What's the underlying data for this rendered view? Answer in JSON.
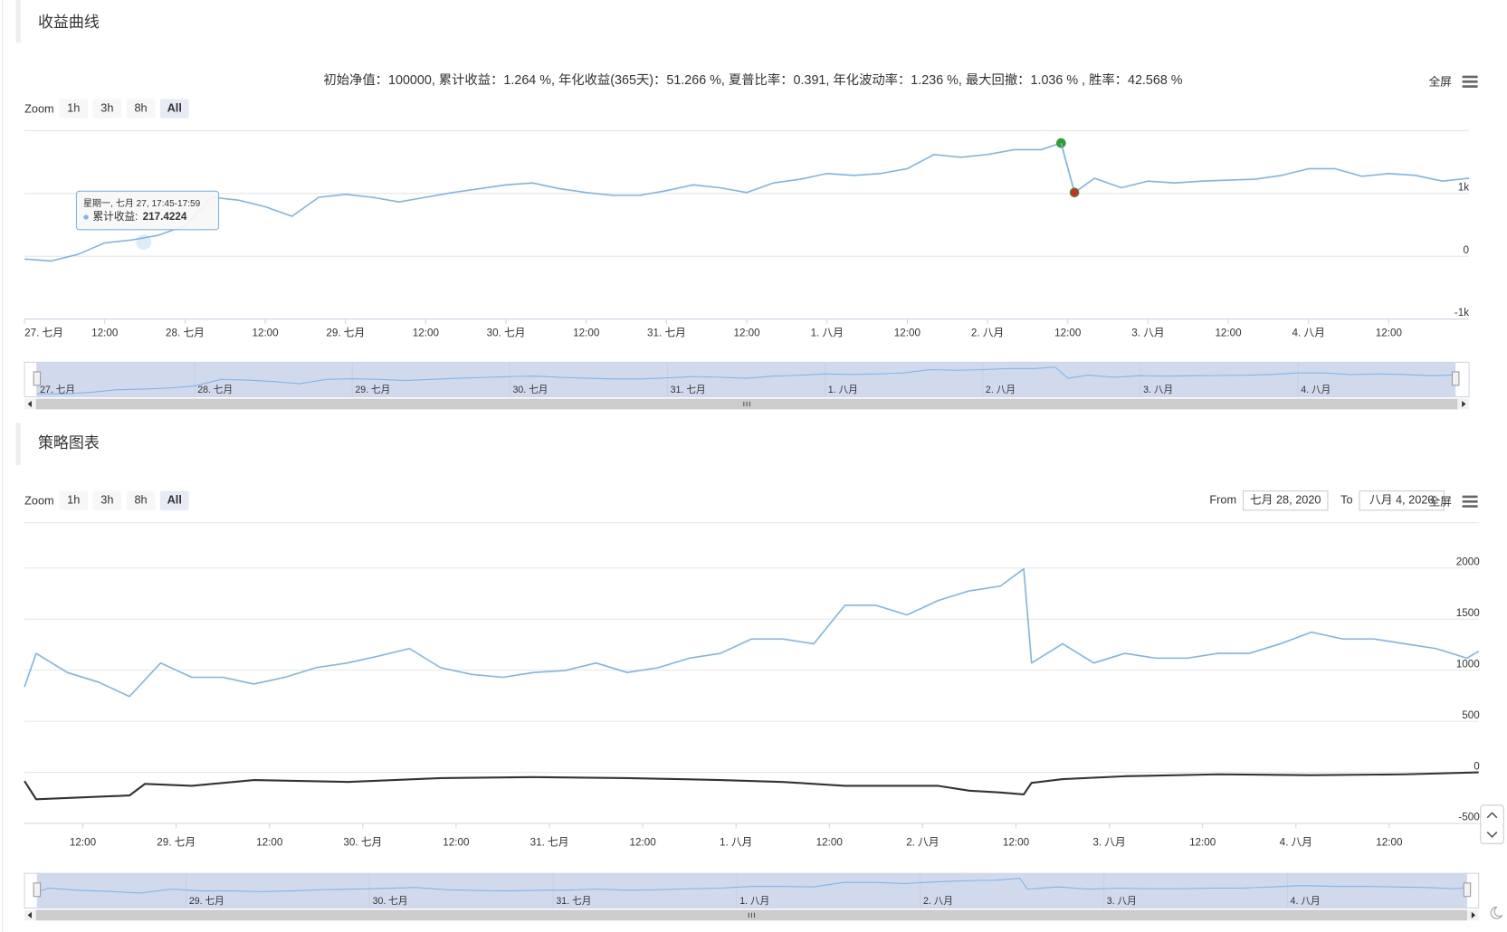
{
  "chart_data": [
    {
      "type": "line",
      "title": "收益曲线",
      "subtitle": "初始净值：100000, 累计收益：1.264 %, 年化收益(365天)：51.266 %, 夏普比率：0.391, 年化波动率：1.236 %, 最大回撤：1.036 % , 胜率：42.568 %",
      "zoom_label": "Zoom",
      "zoom_buttons": [
        "1h",
        "3h",
        "8h",
        "All"
      ],
      "fullscreen": "全屏",
      "xlim": [
        0,
        216
      ],
      "xticks": [
        {
          "value": 0,
          "label": "27. 七月"
        },
        {
          "value": 12,
          "label": "12:00"
        },
        {
          "value": 24,
          "label": "28. 七月"
        },
        {
          "value": 36,
          "label": "12:00"
        },
        {
          "value": 48,
          "label": "29. 七月"
        },
        {
          "value": 60,
          "label": "12:00"
        },
        {
          "value": 72,
          "label": "30. 七月"
        },
        {
          "value": 84,
          "label": "12:00"
        },
        {
          "value": 96,
          "label": "31. 七月"
        },
        {
          "value": 108,
          "label": "12:00"
        },
        {
          "value": 120,
          "label": "1. 八月"
        },
        {
          "value": 132,
          "label": "12:00"
        },
        {
          "value": 144,
          "label": "2. 八月"
        },
        {
          "value": 156,
          "label": "12:00"
        },
        {
          "value": 168,
          "label": "3. 八月"
        },
        {
          "value": 180,
          "label": "12:00"
        },
        {
          "value": 192,
          "label": "4. 八月"
        },
        {
          "value": 204,
          "label": "12:00"
        }
      ],
      "ylim": [
        -1000,
        2000
      ],
      "yticks": [
        {
          "value": 1000,
          "label": "1k"
        },
        0,
        {
          "value": -1000,
          "label": "-1k"
        }
      ],
      "grid": true,
      "series": [
        {
          "color": "#7cb5ec",
          "x": [
            0,
            4,
            8,
            12,
            16,
            20,
            24,
            28,
            32,
            36,
            40,
            44,
            48,
            52,
            56,
            60,
            64,
            68,
            72,
            76,
            80,
            84,
            88,
            92,
            96,
            100,
            104,
            108,
            112,
            116,
            120,
            124,
            128,
            132,
            136,
            140,
            144,
            148,
            152,
            155,
            157,
            160,
            164,
            168,
            172,
            176,
            180,
            184,
            188,
            192,
            196,
            200,
            204,
            208,
            212,
            216
          ],
          "values": [
            -45,
            -75,
            30,
            212,
            258,
            333,
            485,
            940,
            894,
            788,
            636,
            940,
            985,
            940,
            864,
            940,
            1015,
            1076,
            1136,
            1167,
            1076,
            1015,
            970,
            970,
            1045,
            1136,
            1091,
            1015,
            1167,
            1227,
            1318,
            1288,
            1318,
            1394,
            1621,
            1576,
            1621,
            1697,
            1697,
            1803,
            1015,
            1242,
            1091,
            1197,
            1167,
            1197,
            1212,
            1227,
            1288,
            1394,
            1394,
            1273,
            1318,
            1288,
            1197,
            1242
          ]
        }
      ],
      "markers": [
        {
          "x": 155,
          "y": 1803,
          "color": "#2ca02c"
        },
        {
          "x": 157,
          "y": 1015,
          "color": "#d62728"
        }
      ],
      "tooltip": {
        "header": "星期一, 七月 27, 17:45-17:59",
        "label": "累计收益:",
        "value": 217.4224
      }
    },
    {
      "type": "line",
      "title": "策略图表",
      "zoom_label": "Zoom",
      "zoom_buttons": [
        "1h",
        "3h",
        "8h",
        "All"
      ],
      "fullscreen": "全屏",
      "range_from_label": "From",
      "range_from": "七月 28, 2020",
      "range_to_label": "To",
      "range_to": "八月 4, 2020",
      "xlim": [
        28.5,
        215.5
      ],
      "xticks": [
        {
          "value": 36,
          "label": "12:00"
        },
        {
          "value": 48,
          "label": "29. 七月"
        },
        {
          "value": 60,
          "label": "12:00"
        },
        {
          "value": 72,
          "label": "30. 七月"
        },
        {
          "value": 84,
          "label": "12:00"
        },
        {
          "value": 96,
          "label": "31. 七月"
        },
        {
          "value": 108,
          "label": "12:00"
        },
        {
          "value": 120,
          "label": "1. 八月"
        },
        {
          "value": 132,
          "label": "12:00"
        },
        {
          "value": 144,
          "label": "2. 八月"
        },
        {
          "value": 156,
          "label": "12:00"
        },
        {
          "value": 168,
          "label": "3. 八月"
        },
        {
          "value": 180,
          "label": "12:00"
        },
        {
          "value": 192,
          "label": "4. 八月"
        },
        {
          "value": 204,
          "label": "12:00"
        }
      ],
      "ylim": [
        -500,
        2500
      ],
      "yticks": [
        2000,
        1500,
        1000,
        500,
        0,
        -500
      ],
      "grid": true,
      "series": [
        {
          "color": "#7cb5ec",
          "x": [
            28.5,
            30,
            34,
            38,
            42,
            46,
            50,
            54,
            58,
            62,
            66,
            70,
            74,
            78,
            82,
            86,
            90,
            94,
            98,
            102,
            106,
            110,
            114,
            118,
            122,
            126,
            130,
            134,
            138,
            142,
            146,
            150,
            154,
            157,
            158,
            162,
            166,
            170,
            174,
            178,
            182,
            186,
            190,
            194,
            198,
            202,
            206,
            210,
            214,
            215.5
          ],
          "values": [
            836,
            1165,
            977,
            883,
            742,
            1071,
            930,
            930,
            865,
            930,
            1024,
            1071,
            1137,
            1212,
            1024,
            959,
            930,
            977,
            996,
            1071,
            977,
            1024,
            1118,
            1165,
            1306,
            1306,
            1259,
            1635,
            1635,
            1541,
            1682,
            1776,
            1823,
            1992,
            1071,
            1259,
            1071,
            1165,
            1118,
            1118,
            1165,
            1165,
            1259,
            1372,
            1306,
            1306,
            1259,
            1212,
            1118,
            1184
          ]
        },
        {
          "color": "#333333",
          "x": [
            28.5,
            30,
            42,
            44,
            50,
            58,
            70,
            82,
            94,
            106,
            118,
            126,
            134,
            146,
            150,
            154,
            157,
            158,
            162,
            170,
            182,
            194,
            206,
            215.5
          ],
          "values": [
            -85,
            -263,
            -226,
            -113,
            -132,
            -75,
            -94,
            -56,
            -47,
            -56,
            -75,
            -94,
            -132,
            -132,
            -179,
            -197,
            -216,
            -103,
            -66,
            -38,
            -19,
            -28,
            -19,
            0
          ]
        }
      ]
    }
  ]
}
